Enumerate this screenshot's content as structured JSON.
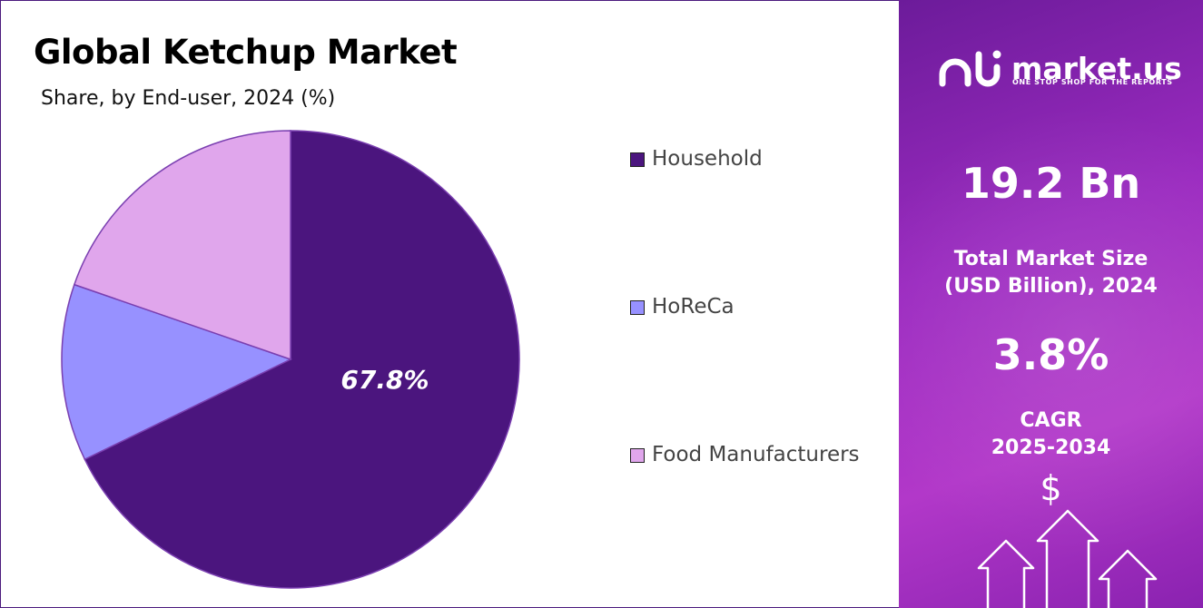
{
  "header": {
    "title": "Global Ketchup Market",
    "subtitle": "Share, by End-user, 2024 (%)"
  },
  "chart_data": {
    "type": "pie",
    "title": "Global Ketchup Market",
    "subtitle": "Share, by End-user, 2024 (%)",
    "legend_position": "right",
    "slices": [
      {
        "label": "Household",
        "value": 67.8,
        "color": "#4b157e",
        "label_text": "67.8%"
      },
      {
        "label": "HoReCa",
        "value": 12.5,
        "color": "#9791ff",
        "label_text": ""
      },
      {
        "label": "Food Manufacturers",
        "value": 19.7,
        "color": "#e0a6ec",
        "label_text": ""
      }
    ]
  },
  "side_panel": {
    "brand": "market.us",
    "tagline": "ONE STOP SHOP FOR THE REPORTS",
    "market_size": "19.2 Bn",
    "market_size_label_line1": "Total Market Size",
    "market_size_label_line2": "(USD Billion), 2024",
    "cagr_value": "3.8%",
    "cagr_label_line1": "CAGR",
    "cagr_label_line2": "2025-2034",
    "currency_symbol": "$",
    "brand_icon": "market-us-logo-icon",
    "arrows_icon": "growth-arrows-icon"
  }
}
